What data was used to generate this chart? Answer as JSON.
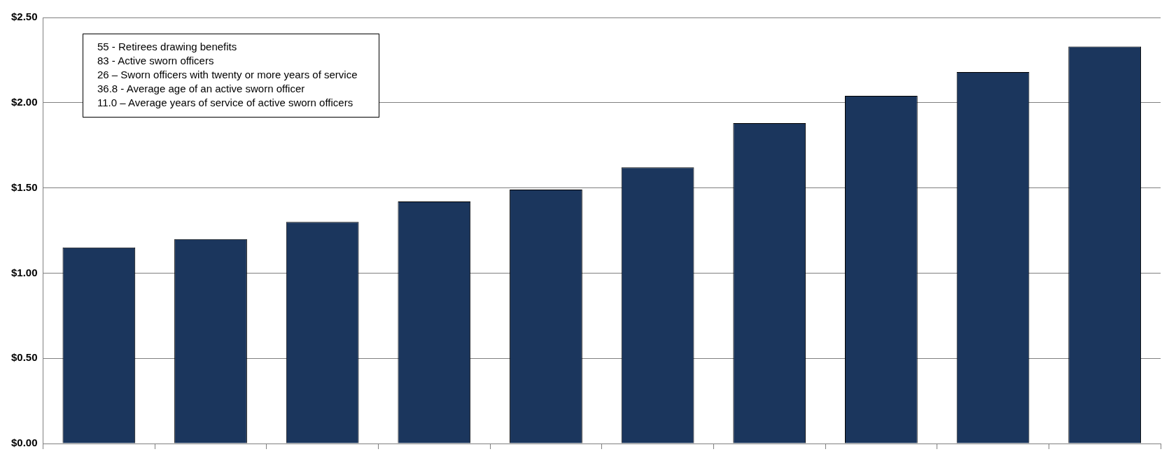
{
  "chart_data": {
    "type": "bar",
    "categories": [
      null,
      null,
      null,
      null,
      null,
      null,
      null,
      null,
      null,
      null
    ],
    "series": [
      {
        "color": "#1b365d",
        "values": [
          1.15,
          1.2,
          1.3,
          1.42,
          1.49,
          1.62,
          1.88,
          2.04,
          2.18,
          2.33
        ]
      }
    ],
    "ylim": [
      0,
      2.5
    ],
    "yticks": [
      {
        "value": 0,
        "label": "$0.00"
      },
      {
        "value": 0.5,
        "label": "$0.50"
      },
      {
        "value": 1,
        "label": "$1.00"
      },
      {
        "value": 1.5,
        "label": "$1.50"
      },
      {
        "value": 2,
        "label": "$2.00"
      },
      {
        "value": 2.5,
        "label": "$2.50"
      }
    ],
    "grid": "y",
    "legend": false,
    "tick_labels": "y",
    "annotations": [
      "55 - Retirees drawing benefits",
      "83 - Active sworn officers",
      "26 – Sworn officers with twenty or more years of service",
      "36.8 - Average age of an active sworn officer",
      "11.0 – Average years of service of active sworn officers"
    ]
  }
}
